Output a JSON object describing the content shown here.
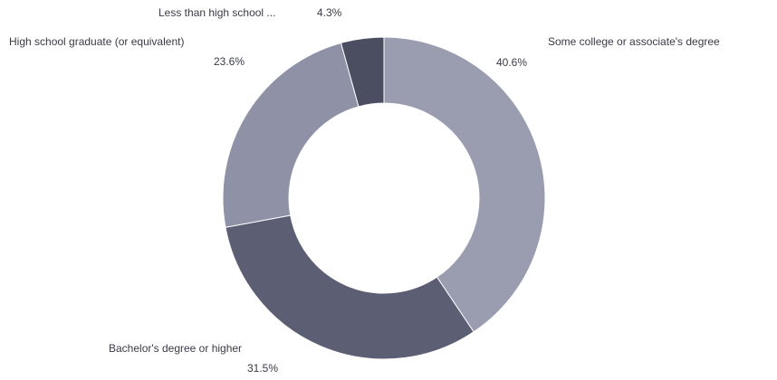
{
  "chart_data": {
    "type": "pie",
    "variant": "donut",
    "start_angle_deg": 0,
    "direction": "clockwise",
    "slices": [
      {
        "name": "Some college or associate's degree",
        "value": 40.6,
        "pct_label": "40.6%",
        "color": "#9a9db0"
      },
      {
        "name": "Bachelor's degree or higher",
        "value": 31.5,
        "pct_label": "31.5%",
        "color": "#5c5e73"
      },
      {
        "name": "High school graduate (or equivalent)",
        "value": 23.6,
        "pct_label": "23.6%",
        "color": "#8f91a6"
      },
      {
        "name": "Less than high school ...",
        "value": 4.3,
        "pct_label": "4.3%",
        "color": "#4b4d61"
      }
    ]
  }
}
